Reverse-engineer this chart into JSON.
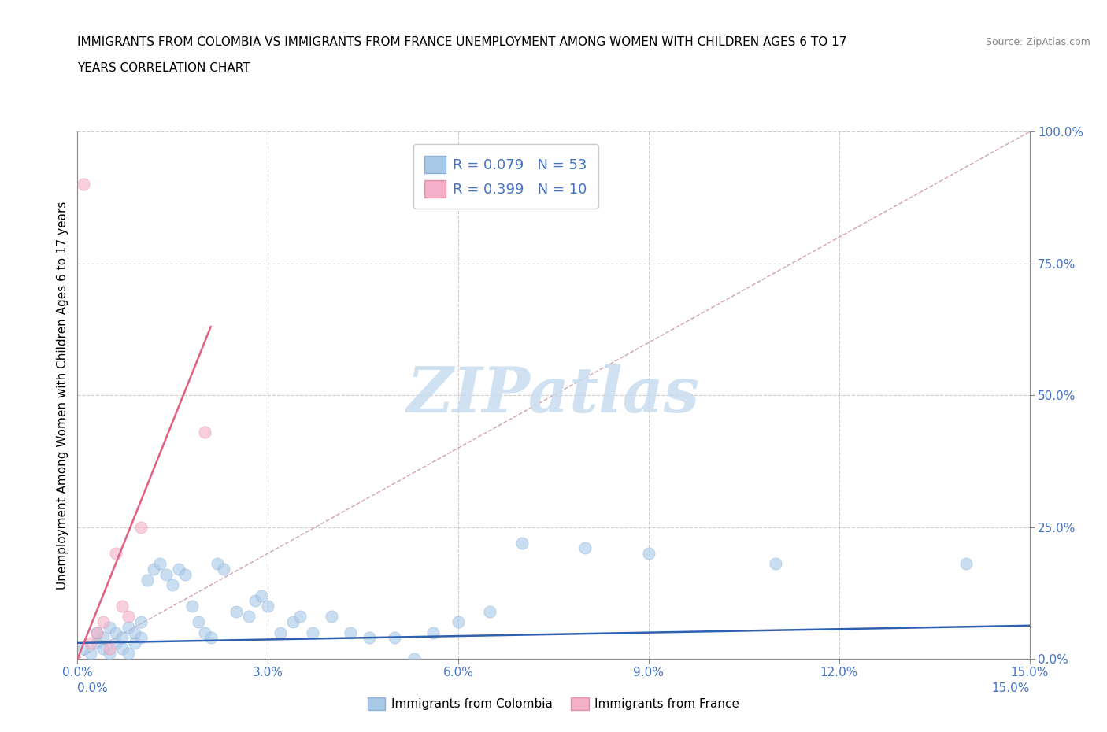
{
  "title_line1": "IMMIGRANTS FROM COLOMBIA VS IMMIGRANTS FROM FRANCE UNEMPLOYMENT AMONG WOMEN WITH CHILDREN AGES 6 TO 17",
  "title_line2": "YEARS CORRELATION CHART",
  "source": "Source: ZipAtlas.com",
  "ylabel": "Unemployment Among Women with Children Ages 6 to 17 years",
  "xlim": [
    0.0,
    0.15
  ],
  "ylim": [
    0.0,
    1.0
  ],
  "xticks": [
    0.0,
    0.03,
    0.06,
    0.09,
    0.12,
    0.15
  ],
  "yticks": [
    0.0,
    0.25,
    0.5,
    0.75,
    1.0
  ],
  "xtick_labels": [
    "0.0%",
    "3.0%",
    "6.0%",
    "9.0%",
    "12.0%",
    "15.0%"
  ],
  "ytick_labels": [
    "0.0%",
    "25.0%",
    "50.0%",
    "75.0%",
    "100.0%"
  ],
  "colombia_R": 0.079,
  "colombia_N": 53,
  "france_R": 0.399,
  "france_N": 10,
  "colombia_color": "#a8c8e8",
  "france_color": "#f4b0c8",
  "colombia_line_color": "#3060b0",
  "france_line_color": "#e06080",
  "diagonal_color": "#d0a0b0",
  "watermark_color": "#c8ddf0",
  "colombia_x": [
    0.001,
    0.002,
    0.003,
    0.003,
    0.004,
    0.004,
    0.005,
    0.005,
    0.006,
    0.006,
    0.007,
    0.007,
    0.008,
    0.008,
    0.009,
    0.009,
    0.01,
    0.01,
    0.011,
    0.012,
    0.013,
    0.014,
    0.015,
    0.016,
    0.017,
    0.018,
    0.019,
    0.02,
    0.021,
    0.022,
    0.023,
    0.025,
    0.027,
    0.028,
    0.029,
    0.03,
    0.032,
    0.034,
    0.035,
    0.037,
    0.04,
    0.043,
    0.046,
    0.05,
    0.053,
    0.056,
    0.06,
    0.065,
    0.07,
    0.08,
    0.09,
    0.11,
    0.14
  ],
  "colombia_y": [
    0.02,
    0.01,
    0.03,
    0.05,
    0.02,
    0.04,
    0.01,
    0.06,
    0.03,
    0.05,
    0.02,
    0.04,
    0.01,
    0.06,
    0.03,
    0.05,
    0.04,
    0.07,
    0.15,
    0.17,
    0.18,
    0.16,
    0.14,
    0.17,
    0.16,
    0.1,
    0.07,
    0.05,
    0.04,
    0.18,
    0.17,
    0.09,
    0.08,
    0.11,
    0.12,
    0.1,
    0.05,
    0.07,
    0.08,
    0.05,
    0.08,
    0.05,
    0.04,
    0.04,
    0.0,
    0.05,
    0.07,
    0.09,
    0.22,
    0.21,
    0.2,
    0.18,
    0.18
  ],
  "france_x": [
    0.001,
    0.002,
    0.003,
    0.004,
    0.005,
    0.006,
    0.007,
    0.008,
    0.01,
    0.02
  ],
  "france_y": [
    0.9,
    0.03,
    0.05,
    0.07,
    0.02,
    0.2,
    0.1,
    0.08,
    0.25,
    0.43
  ],
  "colombia_line_x": [
    0.0,
    0.15
  ],
  "colombia_line_y": [
    0.03,
    0.063
  ],
  "france_line_x": [
    0.0,
    0.021
  ],
  "france_line_y": [
    0.0,
    0.63
  ]
}
